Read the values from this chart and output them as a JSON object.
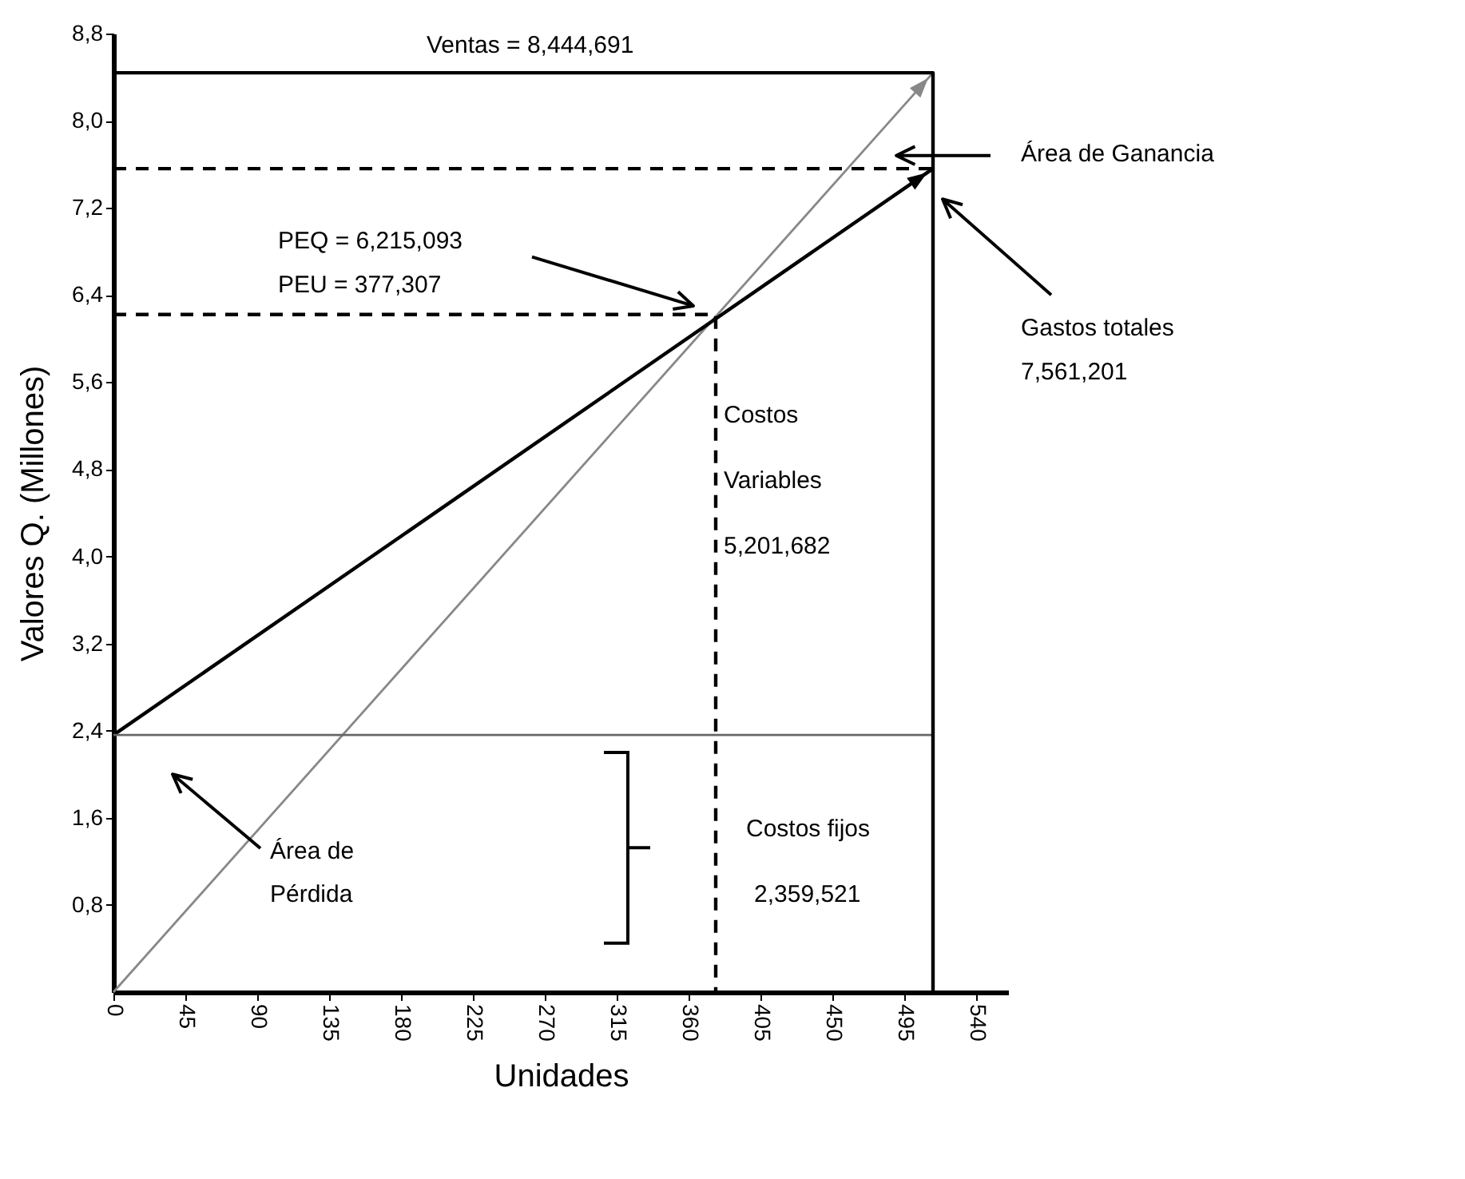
{
  "chart_data": {
    "type": "line",
    "xlabel": "Unidades",
    "ylabel": "Valores Q. (Millones)",
    "xlim": [
      0,
      560
    ],
    "xticks": [
      0,
      45,
      90,
      135,
      180,
      225,
      270,
      315,
      360,
      405,
      450,
      495,
      540
    ],
    "ylim": [
      0,
      8.8
    ],
    "yticks": [
      {
        "value": 0.8,
        "label": "0,8"
      },
      {
        "value": 1.6,
        "label": "1,6"
      },
      {
        "value": 2.4,
        "label": "2,4"
      },
      {
        "value": 3.2,
        "label": "3,2"
      },
      {
        "value": 4.0,
        "label": "4,0"
      },
      {
        "value": 4.8,
        "label": "4,8"
      },
      {
        "value": 5.6,
        "label": "5,6"
      },
      {
        "value": 6.4,
        "label": "6,4"
      },
      {
        "value": 7.2,
        "label": "7,2"
      },
      {
        "value": 8.0,
        "label": "8,0"
      },
      {
        "value": 8.8,
        "label": "8,8"
      }
    ],
    "grid": false,
    "marker": "none",
    "series": [
      {
        "color": "#888888",
        "x": [
          0,
          513
        ],
        "values": [
          0,
          8.44
        ]
      },
      {
        "color": "#000000",
        "x": [
          0,
          513
        ],
        "values": [
          2.36,
          7.56
        ]
      },
      {
        "color": "#666666",
        "x": [
          0,
          513
        ],
        "values": [
          2.36,
          2.36
        ]
      },
      {
        "color": "#000000",
        "x": [
          0,
          513,
          513
        ],
        "values": [
          8.44,
          8.44,
          0
        ]
      },
      {
        "color": "#000000",
        "x": [
          0,
          513
        ],
        "values": [
          7.56,
          7.56
        ],
        "line_style": "dashed"
      },
      {
        "color": "#000000",
        "x": [
          0,
          377,
          377
        ],
        "values": [
          6.22,
          6.22,
          0
        ],
        "line_style": "dashed"
      }
    ],
    "annotations": [
      "Ventas = 8,444,691",
      "PEQ = 6,215,093",
      "PEU = 377,307",
      "Área de Ganancia",
      "Gastos totales",
      "7,561,201",
      "Costos",
      "Variables",
      "5,201,682",
      "Costos fijos",
      "2,359,521",
      "Área de",
      "Pérdida"
    ]
  }
}
